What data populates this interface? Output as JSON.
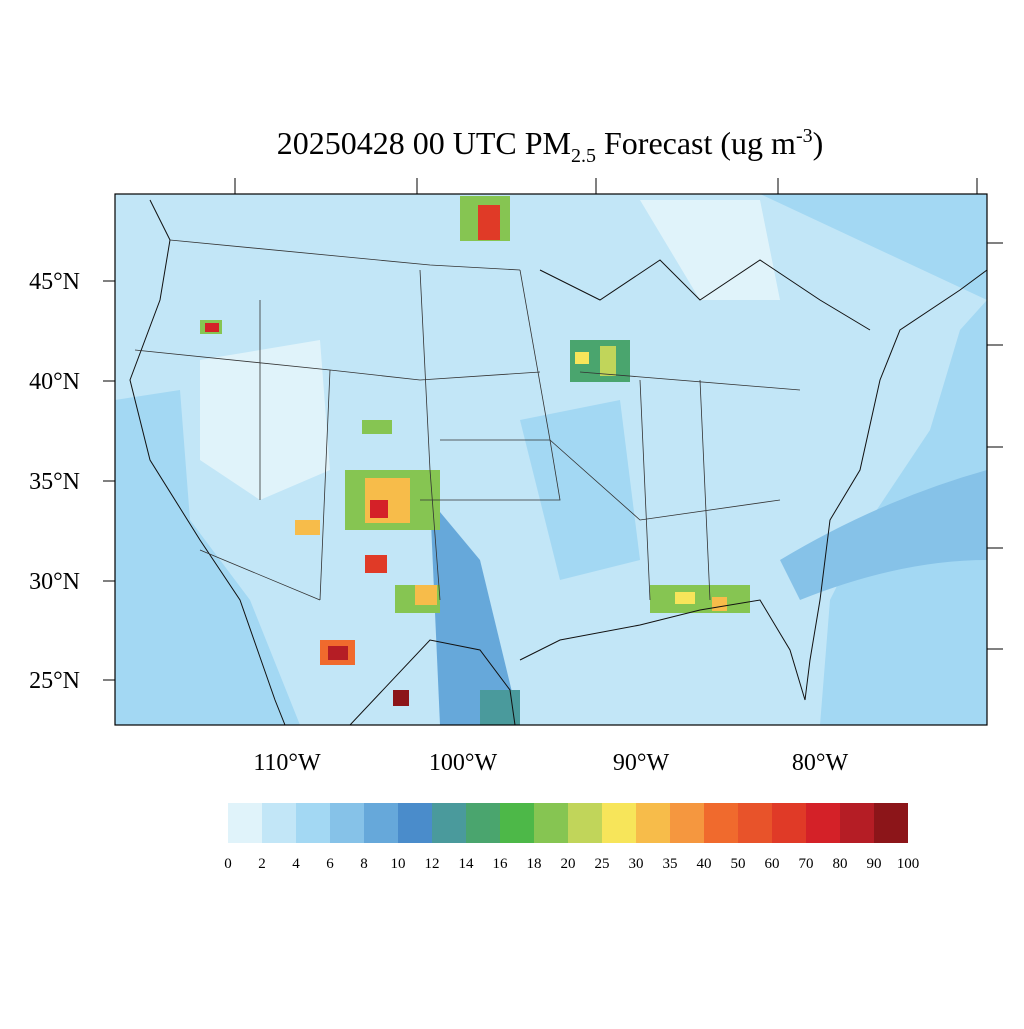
{
  "title": {
    "main": "20250428 00 UTC PM",
    "subscript": "2.5",
    "rest": " Forecast (ug m",
    "superscript": "-3",
    "close": ")"
  },
  "map": {
    "lat_labels": [
      "45°N",
      "40°N",
      "35°N",
      "30°N",
      "25°N"
    ],
    "lon_labels": [
      "110°W",
      "100°W",
      "90°W",
      "80°W"
    ]
  },
  "colorbar": {
    "levels": [
      0,
      2,
      4,
      6,
      8,
      10,
      12,
      14,
      16,
      18,
      20,
      25,
      30,
      35,
      40,
      50,
      60,
      70,
      80,
      90,
      100
    ],
    "colors": [
      "#e0f3fa",
      "#c2e6f7",
      "#a3d8f3",
      "#86c2e8",
      "#66a8da",
      "#4a8ccb",
      "#4a9a9c",
      "#4aa56e",
      "#4db848",
      "#86c552",
      "#c1d55a",
      "#f7e55a",
      "#f7bc4a",
      "#f5973f",
      "#f06a2d",
      "#e8532a",
      "#e03a27",
      "#d42128",
      "#b51d25",
      "#8c1519"
    ]
  }
}
